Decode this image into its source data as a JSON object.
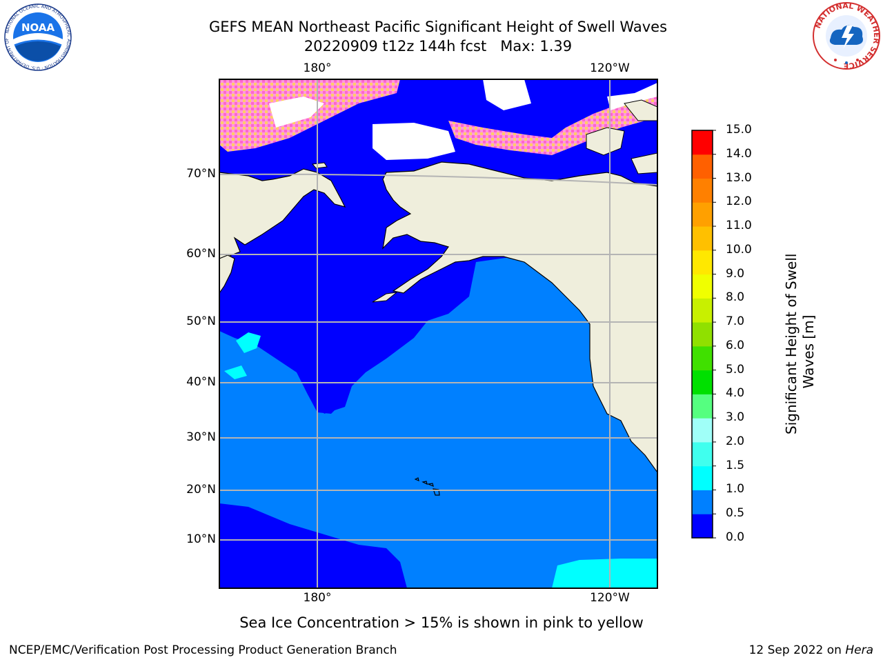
{
  "title": {
    "line1": "GEFS MEAN Northeast Pacific Significant Height of Swell Waves",
    "line2": "20220909 t12z 144h fcst   Max: 1.39"
  },
  "chart_data": {
    "type": "heatmap",
    "title": "GEFS MEAN Northeast Pacific Significant Height of Swell Waves",
    "subtitle": "20220909 t12z 144h fcst   Max: 1.39",
    "max_value": 1.39,
    "lat_ticks": [
      "70°N",
      "60°N",
      "50°N",
      "40°N",
      "30°N",
      "20°N",
      "10°N"
    ],
    "lon_ticks_top": [
      "180°",
      "120°W"
    ],
    "lon_ticks_bottom": [
      "180°",
      "120°W"
    ],
    "grid": true,
    "regions": [
      {
        "name": "0.0-0.5 m",
        "area": "Bering Sea, Arctic waters, Gulf of Alaska western half, NW Pacific north of ~35°N, tropical band south of ~12°N"
      },
      {
        "name": "0.5-1.0 m",
        "area": "central and eastern North Pacific"
      },
      {
        "name": "1.0-1.5 m",
        "area": "patch near 47°N 170°E and eastern tropical Pacific near 5°N 120°W"
      }
    ],
    "colorbar": {
      "label": "Significant Height of Swell Waves [m]",
      "label_line1": "Significant Height of Swell",
      "label_line2": "Waves [m]",
      "ticks": [
        "0.0",
        "0.5",
        "1.0",
        "1.5",
        "2.0",
        "3.0",
        "4.0",
        "5.0",
        "6.0",
        "7.0",
        "8.0",
        "9.0",
        "10.0",
        "11.0",
        "12.0",
        "13.0",
        "14.0",
        "15.0"
      ],
      "colors": [
        "#0000ff",
        "#0080ff",
        "#00ffff",
        "#40ffee",
        "#a0fff8",
        "#55ff80",
        "#00e000",
        "#40e000",
        "#90e000",
        "#c8f000",
        "#f0ff00",
        "#ffe800",
        "#ffc000",
        "#ffa000",
        "#ff8000",
        "#ff6000",
        "#ff0000"
      ]
    },
    "annotation": "Sea Ice Concentration > 15% is shown in pink to yellow"
  },
  "colors": {
    "land": "#efeedc",
    "deep_blue": "#0000ff",
    "mid_blue": "#0080ff",
    "cyan": "#00ffff",
    "ice_pink": "#ff66cc",
    "ice_yellow": "#ffd24d",
    "grid": "#b4b4b4"
  },
  "caption": "Sea Ice Concentration > 15% is shown in pink to yellow",
  "footer": {
    "left": "NCEP/EMC/Verification Post Processing Product Generation Branch",
    "right_prefix": "12 Sep 2022 on ",
    "right_host": "Hera"
  },
  "logos": {
    "left": {
      "text": "NOAA",
      "ring": "NATIONAL OCEANIC AND ATMOSPHERIC ADMINISTRATION · U.S. DEPARTMENT OF COMMERCE"
    },
    "right": {
      "ring": "NATIONAL WEATHER SERVICE"
    }
  },
  "icons": {
    "left_logo": "noaa-logo-icon",
    "right_logo": "nws-logo-icon"
  }
}
